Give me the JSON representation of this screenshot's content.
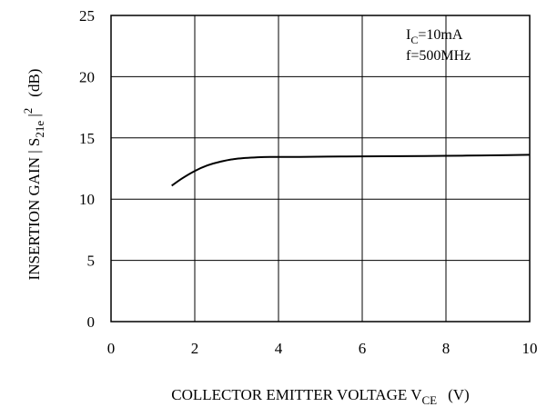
{
  "chart_data": {
    "type": "line",
    "title": "",
    "xlabel": {
      "main": "COLLECTOR EMITTER VOLTAGE V",
      "sub": "CE",
      "unit": "(V)"
    },
    "ylabel": {
      "pre": "INSERTION GAIN | S",
      "sub": "21e",
      "mid": " |",
      "sup": "2",
      "unit": "(dB)"
    },
    "xlim": [
      0,
      10
    ],
    "ylim": [
      0,
      25
    ],
    "xticks": [
      0,
      2,
      4,
      6,
      8,
      10
    ],
    "yticks": [
      0,
      5,
      10,
      15,
      20,
      25
    ],
    "grid": true,
    "annotations": [
      {
        "main": "I",
        "sub": "C",
        "rest": "=10mA"
      },
      {
        "main": "f=500MHz"
      }
    ],
    "series": [
      {
        "x": [
          1.45,
          1.7,
          2.0,
          2.3,
          2.6,
          3.0,
          3.5,
          3.8,
          4.5,
          5.5,
          6.5,
          7.5,
          8.5,
          9.5,
          10.0
        ],
        "y": [
          11.1,
          11.7,
          12.3,
          12.75,
          13.05,
          13.3,
          13.42,
          13.45,
          13.45,
          13.48,
          13.5,
          13.52,
          13.55,
          13.6,
          13.62
        ]
      }
    ]
  }
}
